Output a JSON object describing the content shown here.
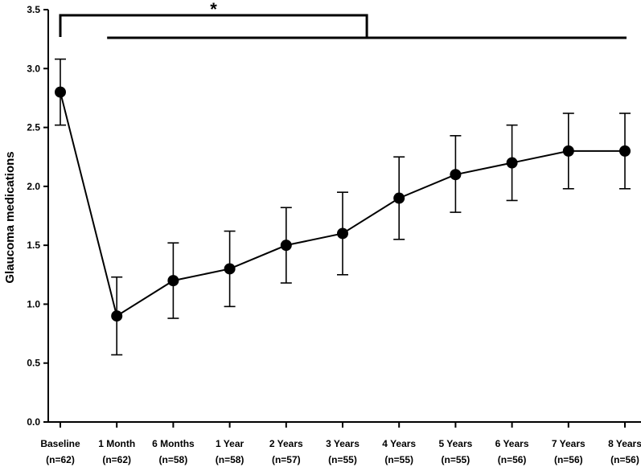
{
  "chart_data": {
    "type": "line",
    "title": "",
    "xlabel": "",
    "ylabel": "Glaucoma medications",
    "ylim": [
      0,
      3.5
    ],
    "yticks": [
      "0.0",
      "0.5",
      "1.0",
      "1.5",
      "2.0",
      "2.5",
      "3.0",
      "3.5"
    ],
    "grid": false,
    "legend": "none",
    "categories": [
      "Baseline",
      "1 Month",
      "6 Months",
      "1 Year",
      "2 Years",
      "3 Years",
      "4 Years",
      "5 Years",
      "6 Years",
      "7 Years",
      "8 Years"
    ],
    "sample_sizes": [
      "(n=62)",
      "(n=62)",
      "(n=58)",
      "(n=58)",
      "(n=57)",
      "(n=55)",
      "(n=55)",
      "(n=55)",
      "(n=56)",
      "(n=56)",
      "(n=56)"
    ],
    "series": [
      {
        "values": [
          2.8,
          0.9,
          1.2,
          1.3,
          1.5,
          1.6,
          1.9,
          2.1,
          2.2,
          2.3,
          2.3
        ],
        "error_lower": [
          2.52,
          0.57,
          0.88,
          0.98,
          1.18,
          1.25,
          1.55,
          1.78,
          1.88,
          1.98,
          1.98
        ],
        "error_upper": [
          3.08,
          1.23,
          1.52,
          1.62,
          1.82,
          1.95,
          2.25,
          2.43,
          2.52,
          2.62,
          2.62
        ],
        "color": "#000000"
      }
    ],
    "significance": {
      "label": "*",
      "from_category": "Baseline",
      "to_categories": [
        "1 Month",
        "6 Months",
        "1 Year",
        "2 Years",
        "3 Years",
        "4 Years",
        "5 Years",
        "6 Years",
        "7 Years",
        "8 Years"
      ]
    }
  }
}
